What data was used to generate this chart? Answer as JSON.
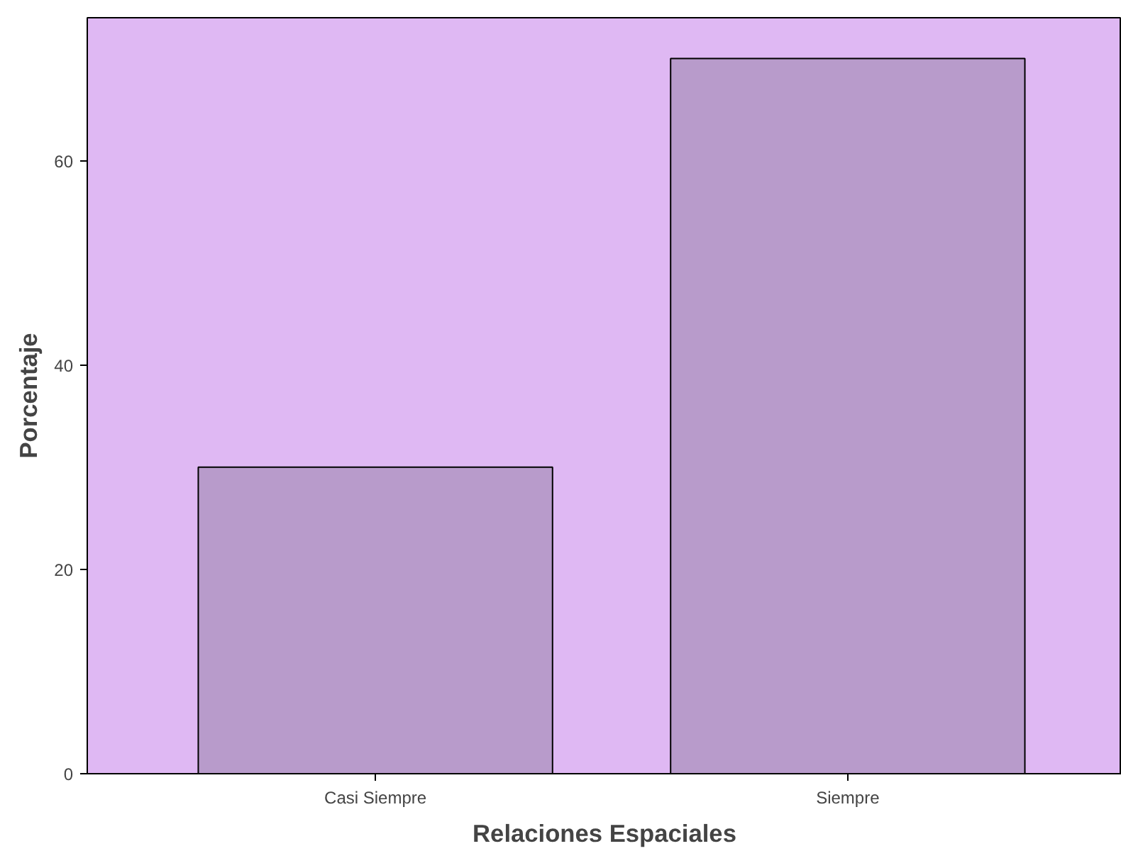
{
  "chart_data": {
    "type": "bar",
    "xlabel": "Relaciones Espaciales",
    "ylabel": "Porcentaje",
    "categories": [
      "Casi Siempre",
      "Siempre"
    ],
    "values": [
      30,
      70
    ],
    "color": "#b89bcb",
    "ylim": [
      0,
      74
    ],
    "yticks": [
      0,
      20,
      40,
      60
    ],
    "grid": false
  }
}
